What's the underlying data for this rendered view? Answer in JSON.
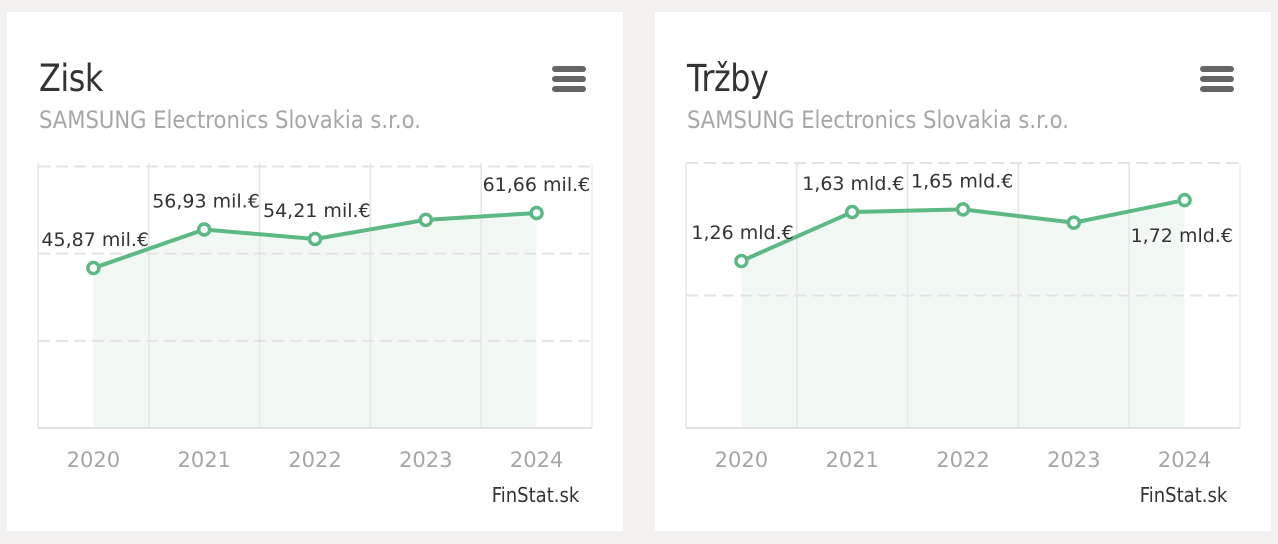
{
  "colors": {
    "page_bg": "#f2f1ef",
    "card_bg": "#ffffff",
    "line": "#5cb885",
    "area": "#f1f8f4",
    "grid": "#e3e3e3",
    "title": "#333333",
    "subtitle": "#a6a6a6"
  },
  "cards": [
    {
      "title": "Zisk",
      "subtitle": "SAMSUNG Electronics Slovakia s.r.o.",
      "menu_icon": "hamburger-menu-icon",
      "credit": "FinStat.sk"
    },
    {
      "title": "Tržby",
      "subtitle": "SAMSUNG Electronics Slovakia s.r.o.",
      "menu_icon": "hamburger-menu-icon",
      "credit": "FinStat.sk"
    }
  ],
  "chart_data": [
    {
      "type": "area",
      "title": "Zisk",
      "subtitle": "SAMSUNG Electronics Slovakia s.r.o.",
      "categories": [
        "2020",
        "2021",
        "2022",
        "2023",
        "2024"
      ],
      "values": [
        45.87,
        56.93,
        54.21,
        59.7,
        61.66
      ],
      "unit": "mil. €",
      "data_labels": [
        "45,87 mil.€",
        "56,93 mil.€",
        "54,21 mil.€",
        "",
        "61,66 mil.€"
      ],
      "xlabel": "",
      "ylabel": "",
      "ylim": [
        0,
        75
      ],
      "yticks": [
        0,
        25,
        50,
        75
      ],
      "grid": true,
      "legend": "none",
      "credit": "FinStat.sk"
    },
    {
      "type": "area",
      "title": "Tržby",
      "subtitle": "SAMSUNG Electronics Slovakia s.r.o.",
      "categories": [
        "2020",
        "2021",
        "2022",
        "2023",
        "2024"
      ],
      "values": [
        1.26,
        1.63,
        1.65,
        1.55,
        1.72
      ],
      "unit": "mld. €",
      "data_labels": [
        "1,26 mld.€",
        "1,63 mld.€",
        "1,65 mld.€",
        "",
        "1,72 mld.€"
      ],
      "xlabel": "",
      "ylabel": "",
      "ylim": [
        0,
        2
      ],
      "yticks": [
        0,
        1,
        2
      ],
      "grid": true,
      "legend": "none",
      "credit": "FinStat.sk"
    }
  ]
}
